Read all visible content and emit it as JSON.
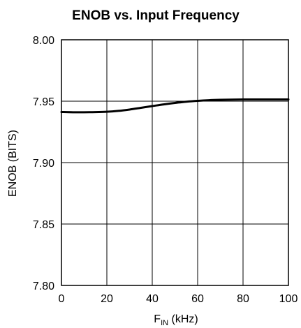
{
  "chart_data": {
    "type": "line",
    "title": "ENOB vs. Input Frequency",
    "xlabel_main": "F",
    "xlabel_sub": "IN",
    "xlabel_unit": " (kHz)",
    "ylabel": "ENOB (BITS)",
    "xlim": [
      0,
      100
    ],
    "ylim": [
      7.8,
      8.0
    ],
    "x_ticks": [
      0,
      20,
      40,
      60,
      80,
      100
    ],
    "x_tick_labels": [
      "0",
      "20",
      "40",
      "60",
      "80",
      "100"
    ],
    "y_ticks": [
      7.8,
      7.85,
      7.9,
      7.95,
      8.0
    ],
    "y_tick_labels": [
      "7.80",
      "7.85",
      "7.90",
      "7.95",
      "8.00"
    ],
    "grid": true,
    "series": [
      {
        "x": [
          0,
          5,
          10,
          15,
          20,
          25,
          30,
          35,
          40,
          45,
          50,
          55,
          60,
          65,
          70,
          75,
          80,
          85,
          90,
          95,
          100
        ],
        "y": [
          7.9412,
          7.941,
          7.941,
          7.9411,
          7.9414,
          7.9421,
          7.9432,
          7.9446,
          7.946,
          7.9474,
          7.9486,
          7.9496,
          7.9503,
          7.9508,
          7.9511,
          7.9513,
          7.9514,
          7.9514,
          7.9514,
          7.9514,
          7.9514
        ]
      }
    ]
  }
}
